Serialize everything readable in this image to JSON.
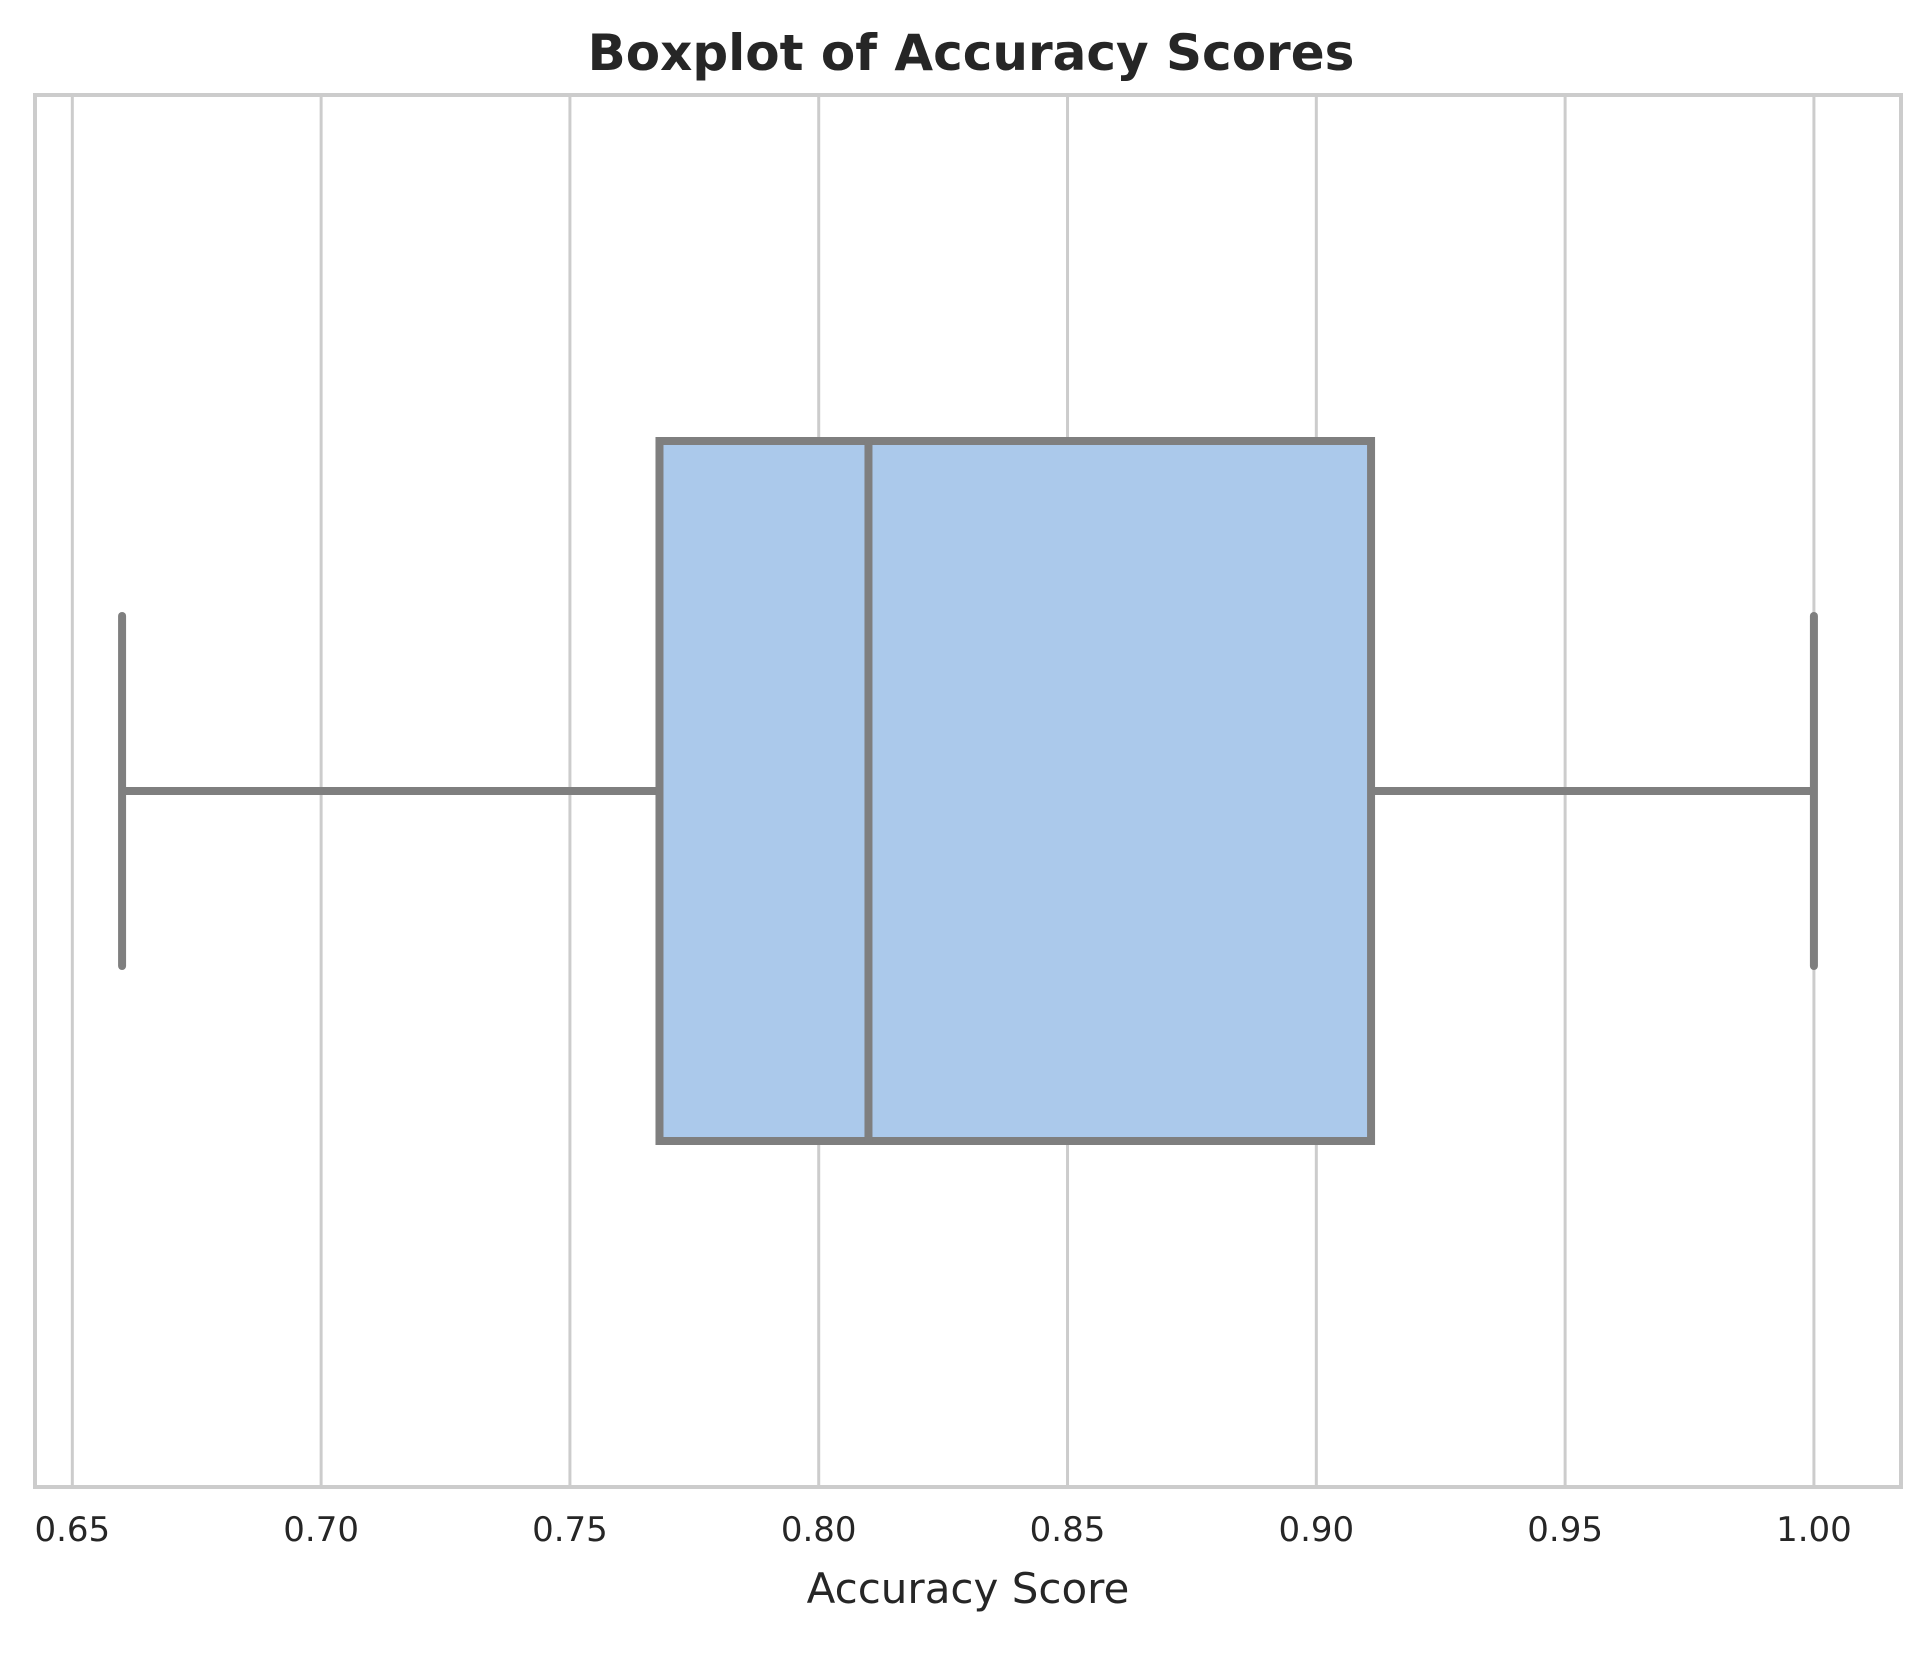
{
  "chart_data": {
    "type": "boxplot",
    "title": "Boxplot of Accuracy Scores",
    "xlabel": "Accuracy Score",
    "ylabel": "",
    "orientation": "horizontal",
    "xlim": [
      0.6425,
      1.0175
    ],
    "xticks": [
      0.65,
      0.7,
      0.75,
      0.8,
      0.85,
      0.9,
      0.95,
      1.0
    ],
    "xtick_labels": [
      "0.65",
      "0.70",
      "0.75",
      "0.80",
      "0.85",
      "0.90",
      "0.95",
      "1.00"
    ],
    "grid": "vertical",
    "legend": "none",
    "box": {
      "min": 0.66,
      "q1": 0.768,
      "median": 0.81,
      "q3": 0.911,
      "max": 1.0
    },
    "colors": {
      "box_fill": "#abc9eb",
      "box_edge": "#7f7f7f",
      "grid": "#cccccc",
      "text": "#262626"
    }
  }
}
